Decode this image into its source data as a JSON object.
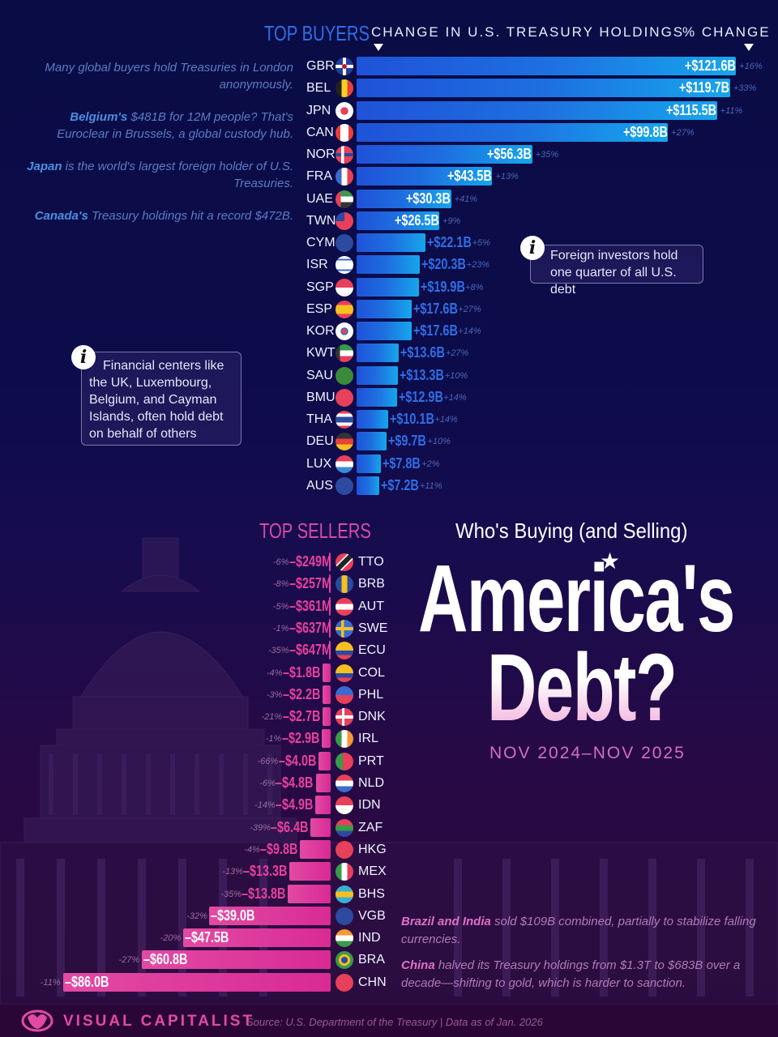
{
  "header": {
    "buyers_title": "TOP BUYERS",
    "change_label": "CHANGE IN U.S. TREASURY HOLDINGS",
    "pct_label": "% CHANGE",
    "sellers_title": "TOP SELLERS"
  },
  "notes": {
    "gbr": {
      "bold": "",
      "text": "Many global buyers hold Treasuries in London anonymously."
    },
    "bel": {
      "bold": "Belgium's",
      "text": " $481B for 12M people? That's Euroclear in Brussels, a global custody hub."
    },
    "jpn": {
      "bold": "Japan",
      "text": " is the world's largest foreign holder of U.S. Treasuries."
    },
    "can": {
      "bold": "Canada's",
      "text": " Treasury holdings hit a record $472B."
    }
  },
  "info_boxes": {
    "foreign": "Foreign investors hold one quarter of all U.S. debt",
    "financial": "Financial centers like the UK, Luxembourg, Belgium, and Cayman Islands, often hold debt on behalf of others",
    "icon": "i"
  },
  "title": {
    "subtitle": "Who's Buying (and Selling)",
    "line1": "America's",
    "line2": "Debt?",
    "star": "★",
    "period": "NOV 2024–NOV 2025"
  },
  "seller_notes": {
    "brazil_india": {
      "bold": "Brazil and India",
      "text": " sold $109B combined, partially to stabilize falling currencies."
    },
    "china": {
      "bold": "China",
      "text": " halved its Treasury holdings from $1.3T to $683B over a decade—shifting to gold, which is harder to sanction."
    }
  },
  "footer": {
    "brand": "VISUAL CAPITALIST",
    "source": "Source: U.S. Department of the Treasury | Data as of Jan. 2026"
  },
  "colors": {
    "buyer_bar_start": "#1f52d8",
    "buyer_bar_end": "#16a6ec",
    "seller_bar": "#d92a94",
    "buyers_title": "#2f6ee6",
    "sellers_title": "#d94aa8",
    "background_top": "#0a0c45",
    "background_bottom": "#2a0636"
  },
  "chart_data": [
    {
      "type": "bar",
      "title": "Top Buyers — Change in U.S. Treasury Holdings",
      "orientation": "horizontal",
      "unit": "USD billions",
      "period": "Nov 2024–Nov 2025",
      "categories": [
        "GBR",
        "BEL",
        "JPN",
        "CAN",
        "NOR",
        "FRA",
        "UAE",
        "TWN",
        "CYM",
        "ISR",
        "SGP",
        "ESP",
        "KOR",
        "KWT",
        "SAU",
        "BMU",
        "THA",
        "DEU",
        "LUX",
        "AUS"
      ],
      "series": [
        {
          "name": "Change ($B)",
          "values": [
            121.6,
            119.7,
            115.5,
            99.8,
            56.3,
            43.5,
            30.3,
            26.5,
            22.1,
            20.3,
            19.9,
            17.6,
            17.6,
            13.6,
            13.3,
            12.9,
            10.1,
            9.7,
            7.8,
            7.2
          ]
        },
        {
          "name": "% Change",
          "values": [
            16,
            33,
            11,
            27,
            35,
            13,
            41,
            9,
            5,
            23,
            8,
            27,
            14,
            27,
            10,
            14,
            14,
            10,
            2,
            11
          ]
        }
      ],
      "labels": [
        "+$121.6B",
        "+$119.7B",
        "+$115.5B",
        "+$99.8B",
        "+$56.3B",
        "+$43.5B",
        "+$30.3B",
        "+$26.5B",
        "+$22.1B",
        "+$20.3B",
        "+$19.9B",
        "+$17.6B",
        "+$17.6B",
        "+$13.6B",
        "+$13.3B",
        "+$12.9B",
        "+$10.1B",
        "+$9.7B",
        "+$7.8B",
        "+$7.2B"
      ],
      "pct_labels": [
        "+16%",
        "+33%",
        "+11%",
        "+27%",
        "+35%",
        "+13%",
        "+41%",
        "+9%",
        "+5%",
        "+23%",
        "+8%",
        "+27%",
        "+14%",
        "+27%",
        "+10%",
        "+14%",
        "+14%",
        "+10%",
        "+2%",
        "+11%"
      ]
    },
    {
      "type": "bar",
      "title": "Top Sellers — Change in U.S. Treasury Holdings",
      "orientation": "horizontal",
      "unit": "USD billions",
      "period": "Nov 2024–Nov 2025",
      "categories": [
        "TTO",
        "BRB",
        "AUT",
        "SWE",
        "ECU",
        "COL",
        "PHL",
        "DNK",
        "IRL",
        "PRT",
        "NLD",
        "IDN",
        "ZAF",
        "HKG",
        "MEX",
        "BHS",
        "VGB",
        "IND",
        "BRA",
        "CHN"
      ],
      "series": [
        {
          "name": "Change ($B)",
          "values": [
            -0.249,
            -0.257,
            -0.361,
            -0.637,
            -0.647,
            -1.8,
            -2.2,
            -2.7,
            -2.9,
            -4.0,
            -4.8,
            -4.9,
            -6.4,
            -9.8,
            -13.3,
            -13.8,
            -39.0,
            -47.5,
            -60.8,
            -86.0
          ]
        },
        {
          "name": "% Change",
          "values": [
            -6,
            -8,
            -5,
            -1,
            -35,
            -4,
            -3,
            -21,
            -1,
            -66,
            -6,
            -14,
            -39,
            -4,
            -13,
            -35,
            -32,
            -20,
            -27,
            -11
          ]
        }
      ],
      "labels": [
        "–$249M",
        "–$257M",
        "–$361M",
        "–$637M",
        "–$647M",
        "–$1.8B",
        "–$2.2B",
        "–$2.7B",
        "–$2.9B",
        "–$4.0B",
        "–$4.8B",
        "–$4.9B",
        "–$6.4B",
        "–$9.8B",
        "–$13.3B",
        "–$13.8B",
        "–$39.0B",
        "–$47.5B",
        "–$60.8B",
        "–$86.0B"
      ],
      "pct_labels": [
        "-6%",
        "-8%",
        "-5%",
        "-1%",
        "-35%",
        "-4%",
        "-3%",
        "-21%",
        "-1%",
        "-66%",
        "-6%",
        "-14%",
        "-39%",
        "-4%",
        "-13%",
        "-35%",
        "-32%",
        "-20%",
        "-27%",
        "-11%"
      ]
    }
  ]
}
